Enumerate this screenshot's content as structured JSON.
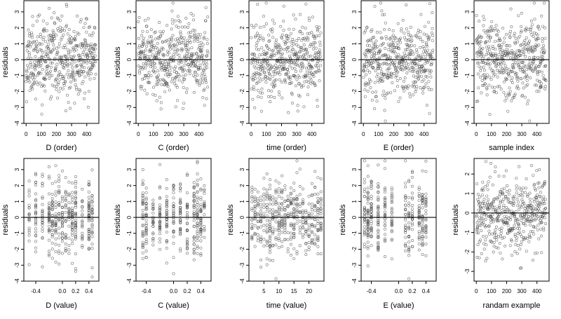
{
  "figure": {
    "ylabel": "residuals",
    "point_color": "#444444",
    "zero_line_color": "#000000",
    "frame_color": "#000000"
  },
  "chart_data": [
    {
      "type": "scatter",
      "xlabel": "D (order)",
      "xlim": [
        -15,
        480
      ],
      "ylim": [
        -4,
        3.7
      ],
      "xticks": [
        0,
        100,
        200,
        300,
        400
      ],
      "xtick_labels": [
        "0",
        "100",
        "200",
        "300",
        "400"
      ],
      "yticks": [
        -4,
        -3,
        -2,
        -1,
        0,
        1,
        2,
        3
      ],
      "ytick_labels": [
        "-4",
        "-3",
        "-2",
        "-1",
        "0",
        "1",
        "2",
        "3"
      ],
      "hline": 0,
      "gen": {
        "mode": "index",
        "n": 460,
        "seed": 11,
        "sd": 1.2
      }
    },
    {
      "type": "scatter",
      "xlabel": "C (order)",
      "xlim": [
        -15,
        480
      ],
      "ylim": [
        -4,
        3.7
      ],
      "xticks": [
        0,
        100,
        200,
        300,
        400
      ],
      "xtick_labels": [
        "0",
        "100",
        "200",
        "300",
        "400"
      ],
      "yticks": [
        -4,
        -3,
        -2,
        -1,
        0,
        1,
        2,
        3
      ],
      "ytick_labels": [
        "-4",
        "-3",
        "-2",
        "-1",
        "0",
        "1",
        "2",
        "3"
      ],
      "hline": 0,
      "gen": {
        "mode": "index",
        "n": 460,
        "seed": 23,
        "sd": 1.2
      }
    },
    {
      "type": "scatter",
      "xlabel": "time (order)",
      "xlim": [
        -15,
        480
      ],
      "ylim": [
        -4,
        3.7
      ],
      "xticks": [
        0,
        100,
        200,
        300,
        400
      ],
      "xtick_labels": [
        "0",
        "100",
        "200",
        "300",
        "400"
      ],
      "yticks": [
        -4,
        -3,
        -2,
        -1,
        0,
        1,
        2,
        3
      ],
      "ytick_labels": [
        "-4",
        "-3",
        "-2",
        "-1",
        "0",
        "1",
        "2",
        "3"
      ],
      "hline": 0,
      "gen": {
        "mode": "index",
        "n": 460,
        "seed": 37,
        "sd": 1.2
      }
    },
    {
      "type": "scatter",
      "xlabel": "E (order)",
      "xlim": [
        -15,
        480
      ],
      "ylim": [
        -4,
        3.7
      ],
      "xticks": [
        0,
        100,
        200,
        300,
        400
      ],
      "xtick_labels": [
        "0",
        "100",
        "200",
        "300",
        "400"
      ],
      "yticks": [
        -4,
        -3,
        -2,
        -1,
        0,
        1,
        2,
        3
      ],
      "ytick_labels": [
        "-4",
        "-3",
        "-2",
        "-1",
        "0",
        "1",
        "2",
        "3"
      ],
      "hline": 0,
      "gen": {
        "mode": "index",
        "n": 460,
        "seed": 41,
        "sd": 1.2
      }
    },
    {
      "type": "scatter",
      "xlabel": "sample index",
      "xlim": [
        -15,
        480
      ],
      "ylim": [
        -4,
        3.7
      ],
      "xticks": [
        0,
        100,
        200,
        300,
        400
      ],
      "xtick_labels": [
        "0",
        "100",
        "200",
        "300",
        "400"
      ],
      "yticks": [
        -4,
        -3,
        -2,
        -1,
        0,
        1,
        2,
        3
      ],
      "ytick_labels": [
        "-4",
        "-3",
        "-2",
        "-1",
        "0",
        "1",
        "2",
        "3"
      ],
      "hline": 0,
      "gen": {
        "mode": "index",
        "n": 460,
        "seed": 53,
        "sd": 1.2
      }
    },
    {
      "type": "scatter",
      "xlabel": "D (value)",
      "xlim": [
        -0.58,
        0.55
      ],
      "ylim": [
        -4,
        3.7
      ],
      "xticks": [
        -0.4,
        0,
        0.2,
        0.4
      ],
      "xtick_labels": [
        "-0.4",
        "0.0",
        "0.2",
        "0.4"
      ],
      "yticks": [
        -4,
        -3,
        -2,
        -1,
        0,
        1,
        2,
        3
      ],
      "ytick_labels": [
        "-4",
        "-3",
        "-2",
        "-1",
        "0",
        "1",
        "2",
        "3"
      ],
      "hline": 0,
      "gen": {
        "mode": "levels",
        "n": 420,
        "seed": 61,
        "sd": 1.2,
        "levels": [
          -0.5,
          -0.4,
          -0.3,
          -0.2,
          -0.15,
          -0.1,
          -0.05,
          0,
          0.05,
          0.1,
          0.15,
          0.2,
          0.3,
          0.4,
          0.45
        ]
      }
    },
    {
      "type": "scatter",
      "xlabel": "C (value)",
      "xlim": [
        -0.55,
        0.55
      ],
      "ylim": [
        -4,
        3.7
      ],
      "xticks": [
        -0.4,
        0,
        0.2,
        0.4
      ],
      "xtick_labels": [
        "-0.4",
        "0.0",
        "0.2",
        "0.4"
      ],
      "yticks": [
        -4,
        -3,
        -2,
        -1,
        0,
        1,
        2,
        3
      ],
      "ytick_labels": [
        "-4",
        "-3",
        "-2",
        "-1",
        "0",
        "1",
        "2",
        "3"
      ],
      "hline": 0,
      "gen": {
        "mode": "levels",
        "n": 380,
        "seed": 71,
        "sd": 1.2,
        "levels": [
          -0.45,
          -0.4,
          -0.3,
          -0.2,
          -0.1,
          0,
          0.1,
          0.2,
          0.3,
          0.35,
          0.4,
          0.45
        ]
      }
    },
    {
      "type": "scatter",
      "xlabel": "time (value)",
      "xlim": [
        0,
        25
      ],
      "ylim": [
        -4,
        3.7
      ],
      "xticks": [
        5,
        10,
        15,
        20
      ],
      "xtick_labels": [
        "5",
        "10",
        "15",
        "20"
      ],
      "yticks": [
        -4,
        -3,
        -2,
        -1,
        0,
        1,
        2,
        3
      ],
      "ytick_labels": [
        "-4",
        "-3",
        "-2",
        "-1",
        "0",
        "1",
        "2",
        "3"
      ],
      "hline": 0,
      "gen": {
        "mode": "levels",
        "n": 460,
        "seed": 83,
        "sd": 1.2,
        "levels": [
          1,
          2,
          3,
          4,
          5,
          6,
          7,
          8,
          9,
          10,
          11,
          12,
          13,
          14,
          15,
          16,
          17,
          18,
          19,
          20,
          21,
          22,
          23,
          24
        ]
      }
    },
    {
      "type": "scatter",
      "xlabel": "E (value)",
      "xlim": [
        -0.55,
        0.55
      ],
      "ylim": [
        -4,
        3.7
      ],
      "xticks": [
        -0.4,
        0,
        0.2,
        0.4
      ],
      "xtick_labels": [
        "-0.4",
        "0.0",
        "0.2",
        "0.4"
      ],
      "yticks": [
        -4,
        -3,
        -2,
        -1,
        0,
        1,
        2,
        3
      ],
      "ytick_labels": [
        "-4",
        "-3",
        "-2",
        "-1",
        "0",
        "1",
        "2",
        "3"
      ],
      "hline": 0,
      "gen": {
        "mode": "levels",
        "n": 380,
        "seed": 97,
        "sd": 1.2,
        "levels": [
          -0.5,
          -0.45,
          -0.4,
          -0.3,
          -0.2,
          -0.1,
          0.1,
          0.15,
          0.2,
          0.3,
          0.35,
          0.4
        ]
      }
    },
    {
      "type": "scatter",
      "xlabel": "randam example",
      "xlim": [
        -15,
        480
      ],
      "ylim": [
        -3.5,
        2.8
      ],
      "xticks": [
        0,
        100,
        200,
        300,
        400
      ],
      "xtick_labels": [
        "0",
        "100",
        "200",
        "300",
        "400"
      ],
      "yticks": [
        -3,
        -2,
        -1,
        0,
        1,
        2
      ],
      "ytick_labels": [
        "-3",
        "-2",
        "-1",
        "0",
        "1",
        "2"
      ],
      "hline": 0,
      "gen": {
        "mode": "index",
        "n": 460,
        "seed": 107,
        "sd": 1.0
      }
    }
  ]
}
